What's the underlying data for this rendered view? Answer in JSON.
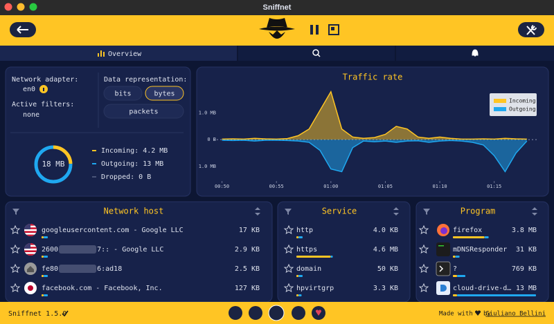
{
  "window_title": "Sniffnet",
  "tabs": {
    "overview": "Overview"
  },
  "overview": {
    "adapter_label": "Network adapter:",
    "adapter": "en0",
    "filters_label": "Active filters:",
    "filters": "none",
    "representation_label": "Data representation:",
    "options": [
      "bits",
      "bytes",
      "packets"
    ],
    "selected": 1,
    "total": "18 MB",
    "traffic": [
      {
        "label": "Incoming: 4.2 MB",
        "value": 4.2,
        "color": "#ffc524"
      },
      {
        "label": "Outgoing: 13 MB",
        "value": 13,
        "color": "#1fa8f0"
      },
      {
        "label": "Dropped: 0 B",
        "value": 0,
        "color": "#4a5578"
      }
    ]
  },
  "chart_data": {
    "type": "area",
    "title": "Traffic rate",
    "x": [
      50,
      51,
      52,
      53,
      54,
      55,
      56,
      57,
      58,
      59,
      60,
      61,
      62,
      63,
      64,
      65,
      66,
      67,
      68,
      69,
      70,
      71,
      72,
      73,
      74,
      75,
      76,
      77,
      78
    ],
    "xlim": [
      49.2,
      78.9
    ],
    "xticks": [
      {
        "value": 50,
        "label": "00:50"
      },
      {
        "value": 55,
        "label": "00:55"
      },
      {
        "value": 60,
        "label": "01:00"
      },
      {
        "value": 65,
        "label": "01:05"
      },
      {
        "value": 70,
        "label": "01:10"
      },
      {
        "value": 75,
        "label": "01:15"
      }
    ],
    "ylim": [
      -1.55,
      2.0
    ],
    "yticks": [
      {
        "value": 1,
        "label": "1.0 MB"
      },
      {
        "value": 0,
        "label": "0 B"
      },
      {
        "value": -1,
        "label": "1.0 MB"
      }
    ],
    "legend": "upper-right",
    "series": [
      {
        "name": "Incoming",
        "color": "#ffc524",
        "values": [
          0.02,
          0.03,
          0.02,
          0.05,
          0.03,
          0.02,
          0.04,
          0.15,
          0.4,
          1.1,
          1.8,
          0.4,
          0.1,
          0.05,
          0.08,
          0.2,
          0.5,
          0.4,
          0.1,
          0.05,
          0.1,
          0.05,
          0.02,
          0.02,
          0.03,
          0.02,
          0.05,
          0.03,
          0.02
        ]
      },
      {
        "name": "Outgoing",
        "color": "#1fa8f0",
        "values": [
          -0.02,
          -0.03,
          -0.02,
          -0.05,
          -0.02,
          -0.02,
          -0.03,
          -0.05,
          -0.1,
          -0.4,
          -1.1,
          -1.2,
          -0.3,
          -0.05,
          -0.08,
          -0.05,
          -0.1,
          -0.05,
          -0.04,
          -0.1,
          -0.05,
          -0.03,
          -0.05,
          -0.1,
          -0.2,
          -0.6,
          -1.2,
          -0.5,
          -0.05
        ]
      }
    ]
  },
  "hosts": {
    "title": "Network host",
    "rows": [
      {
        "icon": "flag-us",
        "name": "googleusercontent.com - Google LLC",
        "size": "17 KB",
        "bar": [
          0.01,
          0.02
        ]
      },
      {
        "icon": "flag-us",
        "name": [
          "2600",
          "7:: - Google LLC"
        ],
        "size": "2.9 KB",
        "bar": [
          0.01,
          0.02
        ]
      },
      {
        "icon": "home",
        "name": [
          "fe80",
          "6:ad18"
        ],
        "size": "2.5 KB",
        "bar": [
          0.01,
          0.02
        ]
      },
      {
        "icon": "flag-jp",
        "name": "facebook.com - Facebook, Inc.",
        "size": "127 KB",
        "bar": [
          0.01,
          0.02
        ]
      }
    ]
  },
  "services": {
    "title": "Service",
    "rows": [
      {
        "name": "http",
        "size": "4.0 KB",
        "bar": [
          0.02,
          0.04
        ]
      },
      {
        "name": "https",
        "size": "4.6 MB",
        "bar": [
          0.33,
          0.02
        ]
      },
      {
        "name": "domain",
        "size": "50 KB",
        "bar": [
          0.02,
          0.04
        ]
      },
      {
        "name": "hpvirtgrp",
        "size": "3.3 KB",
        "bar": [
          0.02,
          0.03
        ]
      }
    ]
  },
  "programs": {
    "title": "Program",
    "rows": [
      {
        "icon": "firefox",
        "name": "firefox",
        "size": "3.8 MB",
        "bar": [
          0.38,
          0.05
        ]
      },
      {
        "icon": "daemon",
        "name": "mDNSResponder",
        "size": "31 KB",
        "bar": [
          0.03,
          0.05
        ]
      },
      {
        "icon": "terminal",
        "name": "?",
        "size": "769 KB",
        "bar": [
          0.05,
          0.1
        ]
      },
      {
        "icon": "drive",
        "name": "cloud-drive-d…",
        "size": "13 MB",
        "bar": [
          0.05,
          0.95
        ]
      }
    ]
  },
  "footer": {
    "version": "Sniffnet 1.5.0",
    "made_with": "Made with",
    "by": "by",
    "author": "Giuliano Bellini"
  }
}
